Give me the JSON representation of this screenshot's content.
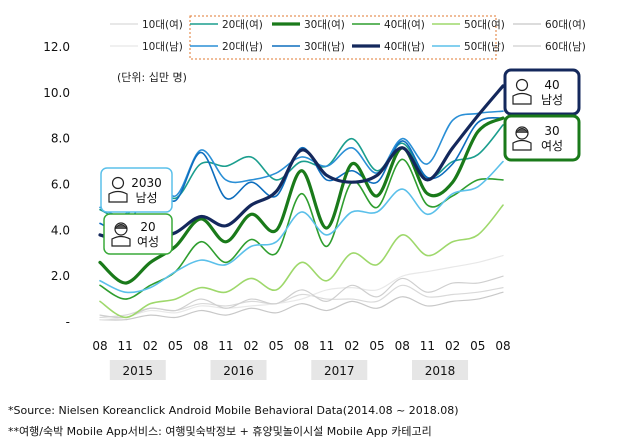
{
  "chart_data": {
    "type": "line",
    "unit_label": "(단위: 십만 명)",
    "yticks": [
      "-",
      "2.0",
      "4.0",
      "6.0",
      "8.0",
      "10.0",
      "12.0"
    ],
    "ylim": [
      0,
      12
    ],
    "x_tick_labels": [
      "08",
      "11",
      "02",
      "05",
      "08",
      "11",
      "02",
      "05",
      "08",
      "11",
      "02",
      "05",
      "08",
      "11",
      "02",
      "05",
      "08"
    ],
    "year_labels": [
      "2015",
      "2016",
      "2017",
      "2018"
    ],
    "grid": false,
    "legend_position": "top",
    "series": [
      {
        "name": "10대(여)",
        "color": "#d9d9d9",
        "width": 1.2,
        "values": [
          0.2,
          0.3,
          0.6,
          0.5,
          0.8,
          0.7,
          0.9,
          0.8,
          1.2,
          1.0,
          1.0,
          0.9,
          1.6,
          1.1,
          1.2,
          1.3,
          1.5
        ]
      },
      {
        "name": "20대(여)",
        "color": "#1b9e8e",
        "width": 1.6,
        "values": [
          4.9,
          4.6,
          6.2,
          5.4,
          6.9,
          6.8,
          7.2,
          6.2,
          7.0,
          6.8,
          8.0,
          6.6,
          7.8,
          6.3,
          7.0,
          7.3,
          8.6
        ]
      },
      {
        "name": "30대(여)",
        "color": "#1a7a1a",
        "width": 3.2,
        "values": [
          2.6,
          1.7,
          2.6,
          3.3,
          4.5,
          3.5,
          4.7,
          4.0,
          6.6,
          4.1,
          6.9,
          5.5,
          7.6,
          5.6,
          6.1,
          8.3,
          8.9
        ]
      },
      {
        "name": "40대(여)",
        "color": "#2f9e2f",
        "width": 1.6,
        "values": [
          1.6,
          1.0,
          1.6,
          2.2,
          3.5,
          2.6,
          3.6,
          3.0,
          5.6,
          3.3,
          6.1,
          5.0,
          7.1,
          5.1,
          5.5,
          6.2,
          6.2
        ]
      },
      {
        "name": "50대(여)",
        "color": "#9ed86b",
        "width": 1.6,
        "values": [
          0.9,
          0.2,
          0.8,
          1.0,
          1.5,
          1.3,
          1.9,
          1.4,
          2.6,
          1.8,
          3.0,
          2.5,
          3.8,
          2.9,
          3.5,
          3.8,
          5.1
        ]
      },
      {
        "name": "60대(여)",
        "color": "#c8c8c8",
        "width": 1.2,
        "values": [
          0.1,
          0.1,
          0.3,
          0.2,
          0.5,
          0.3,
          0.6,
          0.4,
          0.8,
          0.5,
          0.9,
          0.6,
          1.1,
          0.7,
          0.9,
          1.0,
          1.3
        ]
      },
      {
        "name": "10대(남)",
        "color": "#e8e8e8",
        "width": 1.2,
        "values": [
          0.1,
          0.2,
          0.5,
          0.4,
          0.7,
          0.6,
          0.7,
          0.8,
          1.0,
          1.4,
          1.5,
          1.4,
          2.0,
          2.2,
          2.4,
          2.6,
          2.9
        ]
      },
      {
        "name": "20대(남)",
        "color": "#2a8fd6",
        "width": 1.6,
        "values": [
          5.0,
          4.7,
          6.5,
          5.5,
          7.5,
          6.2,
          6.2,
          6.5,
          7.2,
          6.8,
          7.6,
          6.5,
          8.0,
          6.9,
          8.8,
          9.1,
          9.2
        ]
      },
      {
        "name": "30대(남)",
        "color": "#0e6ebe",
        "width": 1.6,
        "values": [
          4.3,
          4.0,
          6.0,
          5.3,
          7.4,
          5.4,
          6.1,
          5.5,
          7.6,
          6.2,
          6.6,
          6.1,
          7.9,
          6.3,
          6.9,
          8.7,
          8.9
        ]
      },
      {
        "name": "40대(남)",
        "color": "#14285c",
        "width": 3.2,
        "values": [
          3.8,
          3.5,
          3.6,
          3.9,
          4.6,
          4.2,
          5.1,
          5.7,
          7.5,
          6.4,
          6.1,
          6.4,
          7.6,
          6.2,
          7.6,
          9.0,
          10.3
        ]
      },
      {
        "name": "50대(남)",
        "color": "#5bc0ea",
        "width": 1.6,
        "values": [
          1.8,
          1.3,
          1.5,
          2.2,
          2.7,
          2.5,
          3.3,
          3.5,
          4.8,
          3.8,
          4.8,
          4.8,
          5.8,
          4.7,
          5.6,
          5.9,
          7.0
        ]
      },
      {
        "name": "60대(남)",
        "color": "#cfcfcf",
        "width": 1.2,
        "values": [
          0.3,
          0.2,
          0.6,
          0.5,
          1.0,
          0.6,
          1.0,
          0.8,
          1.4,
          0.9,
          1.6,
          1.1,
          1.9,
          1.3,
          1.7,
          1.7,
          2.0
        ]
      }
    ],
    "callouts": [
      {
        "id": "male-2030",
        "lines": [
          "2030",
          "남성"
        ],
        "border": "#5bc0ea",
        "icon": "male-person-icon"
      },
      {
        "id": "female-20",
        "lines": [
          "20",
          "여성"
        ],
        "border": "#3aaa3a",
        "icon": "female-person-icon"
      },
      {
        "id": "male-40",
        "lines": [
          "40",
          "남성"
        ],
        "border": "#14285c",
        "icon": "male-person-icon"
      },
      {
        "id": "female-30",
        "lines": [
          "30",
          "여성"
        ],
        "border": "#1a7a1a",
        "icon": "female-person-icon"
      }
    ]
  },
  "footnotes": {
    "source": "*Source: Nielsen Koreanclick Android Mobile Behavioral Data(2014.08 ~ 2018.08)",
    "definition": "**여행/숙박 Mobile App서비스: 여행및숙박정보 + 휴양및놀이시설 Mobile App 카테고리"
  }
}
